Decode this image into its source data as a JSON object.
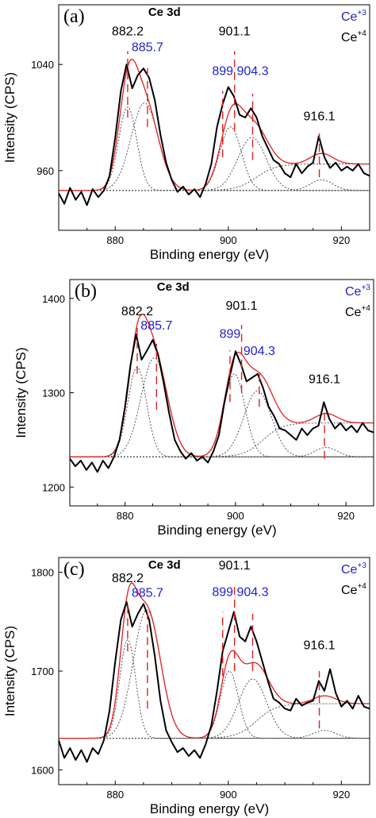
{
  "chart_data": [
    {
      "type": "line",
      "panel_label": "(a)",
      "title": "Ce 3d",
      "xlabel": "Binding energy (eV)",
      "ylabel": "Intensity (CPS)",
      "xlim": [
        870,
        925
      ],
      "ylim": [
        915,
        1085
      ],
      "x_ticks": [
        880,
        900,
        920
      ],
      "y_ticks": [
        960,
        1040
      ],
      "legend": [
        {
          "label": "Ce",
          "sup": "+3",
          "color": "#1f1fd0"
        },
        {
          "label": "Ce",
          "sup": "+4",
          "color": "#000000"
        }
      ],
      "annotations": [
        {
          "text": "882.2",
          "x": 882.2,
          "y": 1062,
          "color": "#000000"
        },
        {
          "text": "885.7",
          "x": 885.7,
          "y": 1050,
          "color": "#1f1fd0"
        },
        {
          "text": "901.1",
          "x": 901.1,
          "y": 1062,
          "color": "#000000"
        },
        {
          "text": "899",
          "x": 899,
          "y": 1032,
          "color": "#1f1fd0"
        },
        {
          "text": "904.3",
          "x": 904.3,
          "y": 1032,
          "color": "#1f1fd0"
        },
        {
          "text": "916.1",
          "x": 916.1,
          "y": 998,
          "color": "#000000"
        }
      ],
      "marker_lines": [
        {
          "x": 882.2,
          "y": [
            1000,
            1050
          ]
        },
        {
          "x": 885.7,
          "y": [
            993,
            1040
          ]
        },
        {
          "x": 899,
          "y": [
            970,
            1020
          ]
        },
        {
          "x": 901.1,
          "y": [
            990,
            1050
          ]
        },
        {
          "x": 904.3,
          "y": [
            968,
            1018
          ]
        },
        {
          "x": 916.1,
          "y": [
            955,
            988
          ]
        }
      ],
      "baseline": 945,
      "peaks": [
        {
          "center": 882.2,
          "height": 63,
          "width": 1.6
        },
        {
          "center": 885.2,
          "height": 66,
          "width": 2.4
        },
        {
          "center": 900.4,
          "height": 48,
          "width": 1.9
        },
        {
          "center": 904.2,
          "height": 40,
          "width": 2.5
        },
        {
          "center": 916.5,
          "height": 8,
          "width": 2.0
        }
      ],
      "tail": {
        "start": 898,
        "end": 912,
        "height": 20
      },
      "raw": {
        "x": [
          870,
          871,
          872,
          873,
          874,
          875,
          876,
          877,
          878,
          879,
          880,
          881,
          882,
          883,
          884,
          885,
          886,
          887,
          888,
          889,
          890,
          891,
          892,
          893,
          894,
          895,
          896,
          897,
          898,
          899,
          900,
          901,
          902,
          903,
          904,
          905,
          906,
          907,
          908,
          909,
          910,
          911,
          912,
          913,
          914,
          915,
          916,
          917,
          918,
          919,
          920,
          921,
          922,
          923,
          924,
          925
        ],
        "y": [
          943,
          935,
          947,
          938,
          944,
          934,
          946,
          940,
          945,
          956,
          985,
          1020,
          1040,
          1022,
          1032,
          1037,
          1030,
          1013,
          987,
          966,
          953,
          944,
          948,
          942,
          946,
          940,
          950,
          965,
          993,
          1010,
          1023,
          1016,
          1002,
          1000,
          1007,
          1000,
          986,
          977,
          968,
          965,
          958,
          955,
          965,
          958,
          963,
          966,
          986,
          970,
          962,
          966,
          960,
          963,
          960,
          965,
          958,
          956
        ]
      }
    },
    {
      "type": "line",
      "panel_label": "(b)",
      "title": "Ce 3d",
      "xlabel": "Binding energy (eV)",
      "ylabel": "Intensity (CPS)",
      "xlim": [
        870,
        925
      ],
      "ylim": [
        1180,
        1420
      ],
      "x_ticks": [
        880,
        900,
        920
      ],
      "y_ticks": [
        1200,
        1300,
        1400
      ],
      "legend": [
        {
          "label": "Ce",
          "sup": "+3",
          "color": "#1f1fd0"
        },
        {
          "label": "Ce",
          "sup": "+4",
          "color": "#000000"
        }
      ],
      "annotations": [
        {
          "text": "882.2",
          "x": 882.2,
          "y": 1382,
          "color": "#000000"
        },
        {
          "text": "885.7",
          "x": 885.7,
          "y": 1367,
          "color": "#1f1fd0"
        },
        {
          "text": "901.1",
          "x": 901.1,
          "y": 1388,
          "color": "#000000"
        },
        {
          "text": "899",
          "x": 899,
          "y": 1358,
          "color": "#1f1fd0"
        },
        {
          "text": "904.3",
          "x": 904.3,
          "y": 1340,
          "color": "#1f1fd0"
        },
        {
          "text": "916.1",
          "x": 916.1,
          "y": 1310,
          "color": "#000000"
        }
      ],
      "marker_lines": [
        {
          "x": 882.2,
          "y": [
            1320,
            1372
          ]
        },
        {
          "x": 885.7,
          "y": [
            1282,
            1352
          ]
        },
        {
          "x": 899,
          "y": [
            1290,
            1345
          ]
        },
        {
          "x": 901.1,
          "y": [
            1300,
            1372
          ]
        },
        {
          "x": 904.3,
          "y": [
            1285,
            1325
          ]
        },
        {
          "x": 916.1,
          "y": [
            1230,
            1285
          ]
        }
      ],
      "baseline": 1232,
      "peaks": [
        {
          "center": 882.2,
          "height": 95,
          "width": 1.7
        },
        {
          "center": 885.3,
          "height": 105,
          "width": 2.4
        },
        {
          "center": 899.8,
          "height": 88,
          "width": 1.9
        },
        {
          "center": 904.0,
          "height": 70,
          "width": 2.5
        },
        {
          "center": 916.4,
          "height": 10,
          "width": 2.0
        }
      ],
      "tail": {
        "start": 898,
        "end": 912,
        "height": 36
      },
      "raw": {
        "x": [
          870,
          871,
          872,
          873,
          874,
          875,
          876,
          877,
          878,
          879,
          880,
          881,
          882,
          883,
          884,
          885,
          886,
          887,
          888,
          889,
          890,
          891,
          892,
          893,
          894,
          895,
          896,
          897,
          898,
          899,
          900,
          901,
          902,
          903,
          904,
          905,
          906,
          907,
          908,
          909,
          910,
          911,
          912,
          913,
          914,
          915,
          916,
          917,
          918,
          919,
          920,
          921,
          922,
          923,
          924,
          925
        ],
        "y": [
          1230,
          1222,
          1228,
          1218,
          1226,
          1216,
          1228,
          1220,
          1232,
          1250,
          1285,
          1330,
          1362,
          1335,
          1345,
          1356,
          1340,
          1310,
          1278,
          1250,
          1238,
          1230,
          1236,
          1228,
          1232,
          1226,
          1238,
          1255,
          1290,
          1318,
          1344,
          1330,
          1312,
          1316,
          1320,
          1305,
          1285,
          1275,
          1262,
          1260,
          1255,
          1250,
          1262,
          1255,
          1262,
          1265,
          1290,
          1272,
          1262,
          1268,
          1260,
          1265,
          1258,
          1268,
          1260,
          1258
        ]
      }
    },
    {
      "type": "line",
      "panel_label": "(c)",
      "title": "Ce 3d",
      "xlabel": "Binding energy (eV)",
      "ylabel": "Intensity (CPS)",
      "xlim": [
        870,
        925
      ],
      "ylim": [
        1585,
        1815
      ],
      "x_ticks": [
        880,
        900,
        920
      ],
      "y_ticks": [
        1600,
        1700,
        1800
      ],
      "legend": [
        {
          "label": "Ce",
          "sup": "+3",
          "color": "#1f1fd0"
        },
        {
          "label": "Ce",
          "sup": "+4",
          "color": "#000000"
        }
      ],
      "annotations": [
        {
          "text": "882.2",
          "x": 882.2,
          "y": 1790,
          "color": "#000000"
        },
        {
          "text": "885.7",
          "x": 885.7,
          "y": 1775,
          "color": "#1f1fd0"
        },
        {
          "text": "901.1",
          "x": 901.1,
          "y": 1803,
          "color": "#000000"
        },
        {
          "text": "899",
          "x": 899,
          "y": 1776,
          "color": "#1f1fd0"
        },
        {
          "text": "904.3",
          "x": 904.3,
          "y": 1776,
          "color": "#1f1fd0"
        },
        {
          "text": "916.1",
          "x": 916.1,
          "y": 1722,
          "color": "#000000"
        }
      ],
      "marker_lines": [
        {
          "x": 882.2,
          "y": [
            1720,
            1768
          ]
        },
        {
          "x": 885.7,
          "y": [
            1662,
            1760
          ]
        },
        {
          "x": 899,
          "y": [
            1695,
            1760
          ]
        },
        {
          "x": 901.1,
          "y": [
            1700,
            1790
          ]
        },
        {
          "x": 904.3,
          "y": [
            1700,
            1758
          ]
        },
        {
          "x": 916.1,
          "y": [
            1642,
            1700
          ]
        }
      ],
      "baseline": 1632,
      "peaks": [
        {
          "center": 882.2,
          "height": 100,
          "width": 1.4
        },
        {
          "center": 885.6,
          "height": 130,
          "width": 2.4
        },
        {
          "center": 900.2,
          "height": 68,
          "width": 1.6
        },
        {
          "center": 904.3,
          "height": 60,
          "width": 2.5
        },
        {
          "center": 917.0,
          "height": 8,
          "width": 2.0
        }
      ],
      "tail": {
        "start": 898,
        "end": 912,
        "height": 35
      },
      "raw": {
        "x": [
          870,
          871,
          872,
          873,
          874,
          875,
          876,
          877,
          878,
          879,
          880,
          881,
          882,
          883,
          884,
          885,
          886,
          887,
          888,
          889,
          890,
          891,
          892,
          893,
          894,
          895,
          896,
          897,
          898,
          899,
          900,
          901,
          902,
          903,
          904,
          905,
          906,
          907,
          908,
          909,
          910,
          911,
          912,
          913,
          914,
          915,
          916,
          917,
          918,
          919,
          920,
          921,
          922,
          923,
          924,
          925
        ],
        "y": [
          1630,
          1612,
          1622,
          1610,
          1620,
          1608,
          1622,
          1616,
          1630,
          1660,
          1710,
          1752,
          1770,
          1745,
          1758,
          1768,
          1752,
          1715,
          1670,
          1640,
          1628,
          1618,
          1622,
          1614,
          1620,
          1612,
          1626,
          1645,
          1680,
          1720,
          1740,
          1760,
          1735,
          1730,
          1745,
          1730,
          1710,
          1690,
          1672,
          1668,
          1662,
          1660,
          1672,
          1665,
          1668,
          1670,
          1690,
          1680,
          1702,
          1678,
          1664,
          1670,
          1662,
          1675,
          1664,
          1662
        ]
      }
    }
  ]
}
